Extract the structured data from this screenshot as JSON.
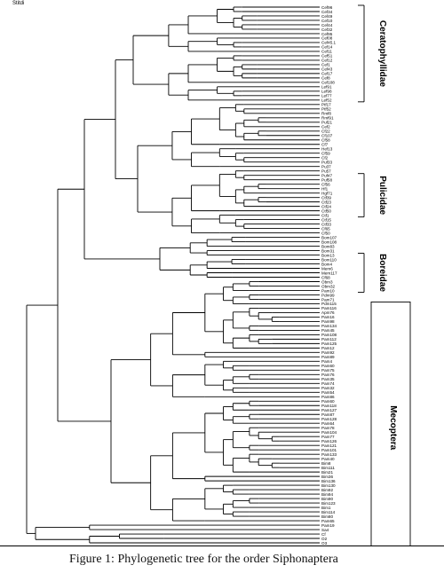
{
  "figure": {
    "corner_label": "Stitdi",
    "caption": "Figure 1: Phylogenetic tree for the order Siphonaptera"
  },
  "groups": [
    {
      "label": "Ceratophyllidae",
      "range": [
        0,
        21
      ],
      "box": "bracket"
    },
    {
      "label": "Pulicidae",
      "range": [
        38,
        47
      ],
      "box": "bracket"
    },
    {
      "label": "Boreidae",
      "range": [
        56,
        64
      ],
      "box": "bracket"
    },
    {
      "label": "Mecoptera",
      "range": [
        67,
        123
      ],
      "box": "frame"
    }
  ],
  "leaves": [
    "Cef96",
    "Cef34",
    "Cef49",
    "Cef10",
    "Cef44",
    "Cef32",
    "Cef95",
    "Cef08",
    "Cef45.1",
    "Cef14",
    "Cef11",
    "Cef51",
    "Cef12",
    "Cef1",
    "Cef43",
    "Cef17",
    "Cef8",
    "Cef108",
    "Lef91",
    "Lef98",
    "Lef77",
    "Lef52",
    "Ptf17",
    "Ptf52",
    "Rmf8",
    "Rmf91",
    "Puf21",
    "Cef2",
    "Cf22",
    "Cf107",
    "Cf58",
    "Cf7",
    "Hef13",
    "Cf59",
    "Cf2",
    "Puf33",
    "Pu37",
    "Pu57",
    "Puf47",
    "Puf58",
    "Cf56",
    "Hf1",
    "Hgf71",
    "Ctf39",
    "Ctf23",
    "Ctf24",
    "Ctf50",
    "Ctf1",
    "Ctf15",
    "Ctf33",
    "Cf65",
    "Cf50",
    "Bom107",
    "Bom108",
    "Bom83",
    "Bom31",
    "Bom13",
    "Bom110",
    "Bom4",
    "Mem6",
    "Mem117",
    "Cf68",
    "Obm3",
    "Obm32",
    "Pam10",
    "Pdm99",
    "Pam71",
    "Pdm115",
    "Pam116",
    "Apm76",
    "Pam16",
    "Pam98",
    "Pam134",
    "Pam45",
    "Pam108",
    "Pam112",
    "Pam125",
    "Pam12",
    "Pam92",
    "Pam89",
    "Pam4",
    "Pam60",
    "Pam75",
    "Pam76",
    "Pam35",
    "Pam74",
    "Pam32",
    "Pam54",
    "Pam86",
    "Pam60",
    "Pam118",
    "Pam127",
    "Pam87",
    "Pam128",
    "Pam64",
    "Pam78",
    "Pam104",
    "Pam77",
    "Pam126",
    "Pam121",
    "Pam101",
    "Pam133",
    "Pam40",
    "Bim8",
    "Bim111",
    "Bim21",
    "Bim36",
    "Bim136",
    "Bim130",
    "Bim92",
    "Bim94",
    "Bim90",
    "Bim123",
    "Bim1",
    "Bim114",
    "Bim80",
    "Pam65",
    "Pam19",
    "Sa4",
    "Cf",
    "O2",
    "O3"
  ]
}
